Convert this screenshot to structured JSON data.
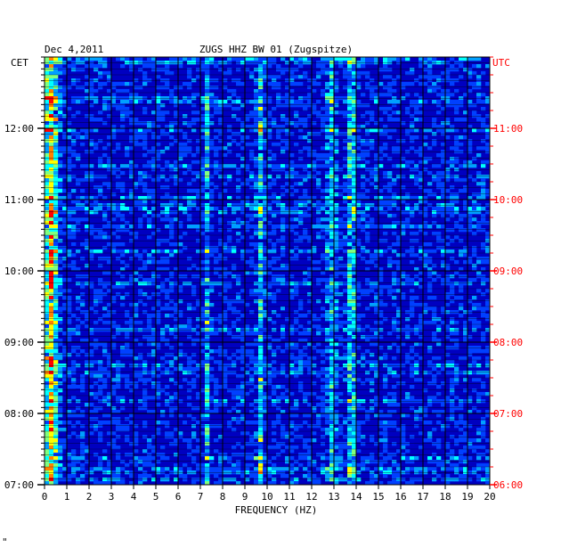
{
  "chart_data": {
    "type": "heatmap",
    "title_left": "Dec 4,2011",
    "title_center": "ZUGS HHZ BW 01 (Zugspitze)",
    "left_axis_label": "CET",
    "right_axis_label": "UTC",
    "xlabel": "FREQUENCY (HZ)",
    "xlim": [
      0,
      20
    ],
    "x_ticks": [
      "0",
      "1",
      "2",
      "3",
      "4",
      "5",
      "6",
      "7",
      "8",
      "9",
      "10",
      "11",
      "12",
      "13",
      "14",
      "15",
      "16",
      "17",
      "18",
      "19",
      "20"
    ],
    "ylim_cet": [
      "07:00",
      "13:00"
    ],
    "y_ticks_cet": [
      "07:00",
      "08:00",
      "09:00",
      "10:00",
      "11:00",
      "12:00"
    ],
    "y_ticks_utc": [
      "06:00",
      "07:00",
      "08:00",
      "09:00",
      "10:00",
      "11:00"
    ],
    "grid": true,
    "colormap": [
      "#000080",
      "#0000c8",
      "#0040ff",
      "#00a0ff",
      "#00ffff",
      "#80ff80",
      "#ffff00",
      "#ff8000",
      "#ff0000"
    ],
    "bands_hz": [
      {
        "center": 0.3,
        "width": 0.5,
        "intensity": 0.55
      },
      {
        "center": 7.3,
        "width": 0.15,
        "intensity": 0.25
      },
      {
        "center": 9.7,
        "width": 0.25,
        "intensity": 0.28
      },
      {
        "center": 12.9,
        "width": 0.4,
        "intensity": 0.22
      },
      {
        "center": 13.8,
        "width": 0.25,
        "intensity": 0.4
      }
    ]
  },
  "footer_mark": "\""
}
